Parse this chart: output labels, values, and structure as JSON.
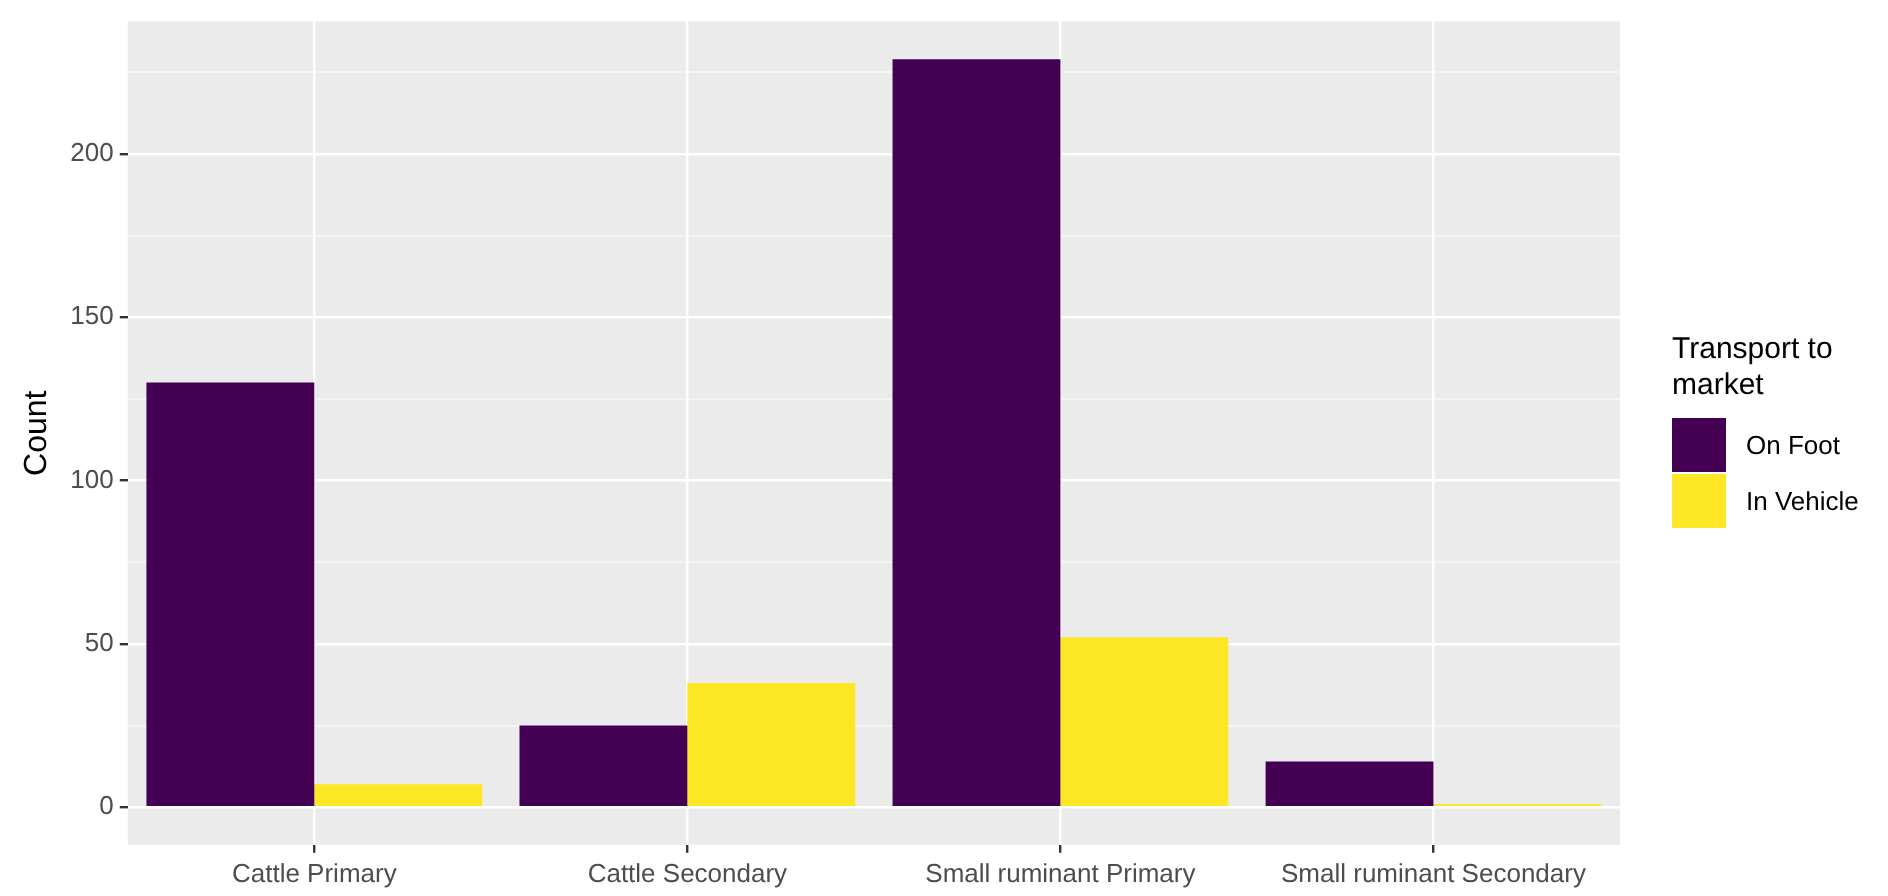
{
  "chart_data": {
    "type": "bar",
    "ylabel": "Count",
    "legend_title": "Transport to market",
    "legend": "right",
    "grid": true,
    "categories": [
      "Cattle Primary",
      "Cattle Secondary",
      "Small ruminant Primary",
      "Small ruminant Secondary"
    ],
    "series": [
      {
        "name": "On Foot",
        "color": "#440154",
        "values": [
          130,
          25,
          229,
          14
        ]
      },
      {
        "name": "In Vehicle",
        "color": "#fde725",
        "values": [
          7,
          38,
          52,
          1
        ]
      }
    ],
    "ylim": [
      -11.5,
      240.5
    ],
    "yticks": [
      0,
      {
        "value": 25,
        "label": null
      },
      50,
      {
        "value": 75,
        "label": null
      },
      100,
      {
        "value": 125,
        "label": null
      },
      150,
      {
        "value": 175,
        "label": null
      },
      200,
      {
        "value": 225,
        "label": null
      }
    ]
  }
}
